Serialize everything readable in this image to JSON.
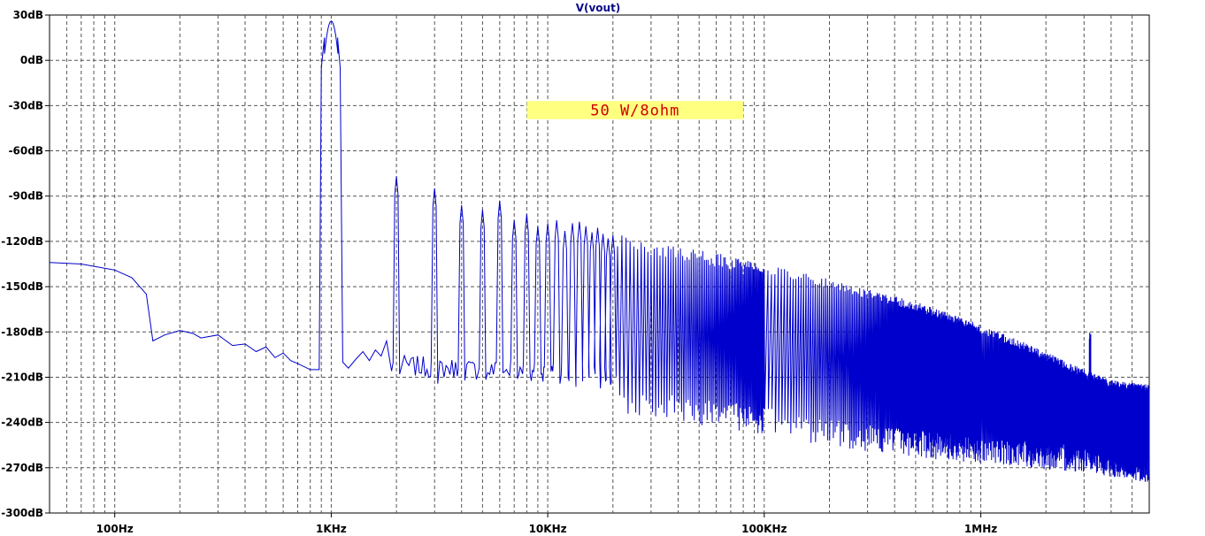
{
  "chart_data": {
    "type": "line",
    "title": "V(vout)",
    "xlabel": "",
    "ylabel": "",
    "x_scale": "log",
    "xlim": [
      50,
      6000000
    ],
    "ylim": [
      -300,
      30
    ],
    "grid": true,
    "x_ticks": [
      {
        "value": 100,
        "label": "100Hz"
      },
      {
        "value": 1000,
        "label": "1KHz"
      },
      {
        "value": 10000,
        "label": "10KHz"
      },
      {
        "value": 100000,
        "label": "100KHz"
      },
      {
        "value": 1000000,
        "label": "1MHz"
      }
    ],
    "y_ticks": [
      {
        "value": 30,
        "label": "30dB"
      },
      {
        "value": 0,
        "label": "0dB"
      },
      {
        "value": -30,
        "label": "-30dB"
      },
      {
        "value": -60,
        "label": "-60dB"
      },
      {
        "value": -90,
        "label": "-90dB"
      },
      {
        "value": -120,
        "label": "-120dB"
      },
      {
        "value": -150,
        "label": "-150dB"
      },
      {
        "value": -180,
        "label": "-180dB"
      },
      {
        "value": -210,
        "label": "-210dB"
      },
      {
        "value": -240,
        "label": "-240dB"
      },
      {
        "value": -270,
        "label": "-270dB"
      },
      {
        "value": -300,
        "label": "-300dB"
      }
    ],
    "annotation": {
      "text": "50 W/8ohm",
      "background": "#ffff80",
      "color": "#d00000",
      "x_range": [
        8000,
        80000
      ],
      "y_range": [
        -39,
        -27
      ]
    },
    "series": [
      {
        "color": "#0000cc",
        "low_freq_curve": [
          [
            50,
            -134
          ],
          [
            70,
            -135
          ],
          [
            100,
            -139
          ],
          [
            120,
            -144
          ],
          [
            140,
            -155
          ],
          [
            150,
            -186
          ],
          [
            170,
            -182
          ],
          [
            200,
            -179
          ],
          [
            230,
            -181
          ],
          [
            250,
            -184
          ],
          [
            300,
            -182
          ],
          [
            350,
            -189
          ],
          [
            400,
            -188
          ],
          [
            450,
            -193
          ],
          [
            500,
            -190
          ],
          [
            550,
            -197
          ],
          [
            600,
            -194
          ],
          [
            650,
            -199
          ],
          [
            700,
            -201
          ],
          [
            800,
            -205
          ]
        ],
        "fundamental": {
          "freq": 1000,
          "peak": 26
        },
        "harmonics": [
          {
            "n": 2,
            "peak": -77
          },
          {
            "n": 3,
            "peak": -85
          },
          {
            "n": 4,
            "peak": -96
          },
          {
            "n": 5,
            "peak": -99
          },
          {
            "n": 6,
            "peak": -93
          },
          {
            "n": 7,
            "peak": -106
          },
          {
            "n": 8,
            "peak": -102
          },
          {
            "n": 9,
            "peak": -110
          },
          {
            "n": 10,
            "peak": -108
          },
          {
            "n": 11,
            "peak": -106
          },
          {
            "n": 12,
            "peak": -113
          },
          {
            "n": 13,
            "peak": -108
          },
          {
            "n": 14,
            "peak": -107
          },
          {
            "n": 15,
            "peak": -110
          },
          {
            "n": 16,
            "peak": -114
          },
          {
            "n": 17,
            "peak": -111
          },
          {
            "n": 18,
            "peak": -115
          },
          {
            "n": 19,
            "peak": -118
          },
          {
            "n": 20,
            "peak": -116
          }
        ],
        "noise_floor": [
          [
            2000,
            -205
          ],
          [
            5000,
            -208
          ],
          [
            10000,
            -210
          ],
          [
            20000,
            -215
          ],
          [
            40000,
            -222
          ],
          [
            100000,
            -230
          ],
          [
            200000,
            -238
          ],
          [
            500000,
            -245
          ],
          [
            1000000,
            -250
          ],
          [
            3000000,
            -255
          ],
          [
            6000000,
            -262
          ]
        ],
        "harmonic_envelope": [
          [
            20000,
            -115
          ],
          [
            50000,
            -125
          ],
          [
            100000,
            -135
          ],
          [
            200000,
            -145
          ],
          [
            500000,
            -160
          ],
          [
            1000000,
            -175
          ],
          [
            2000000,
            -193
          ],
          [
            3000000,
            -205
          ],
          [
            4000000,
            -212
          ],
          [
            6000000,
            -215
          ]
        ],
        "spur": {
          "freq": 3200000,
          "peak": -180
        }
      }
    ]
  }
}
